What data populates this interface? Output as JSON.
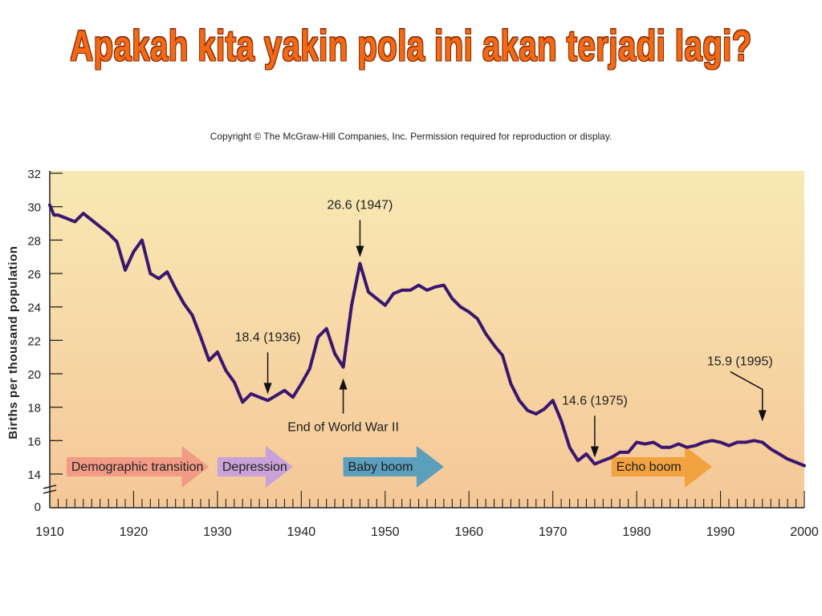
{
  "slide": {
    "title": "Apakah kita yakin pola ini akan terjadi lagi?",
    "copyright": "Copyright © The McGraw-Hill Companies, Inc. Permission required for reproduction or display."
  },
  "chart_data": {
    "type": "line",
    "title": "",
    "xlabel": "",
    "ylabel": "Births per thousand population",
    "xlim": [
      1910,
      2000
    ],
    "ylim": [
      14,
      32
    ],
    "y_axis_break": true,
    "grid": false,
    "line_color": "#3b1670",
    "background_gradient": [
      "#f8e9b4",
      "#f5c797"
    ],
    "x_ticks": [
      "1910",
      "1920",
      "1930",
      "1940",
      "1950",
      "1960",
      "1970",
      "1980",
      "1990",
      "2000"
    ],
    "y_ticks": [
      "32",
      "30",
      "28",
      "26",
      "24",
      "22",
      "20",
      "18",
      "16",
      "14"
    ],
    "y_zero_label": "0",
    "series": [
      {
        "x": [
          1910,
          1910.5,
          1911,
          1912,
          1913,
          1914,
          1915,
          1916,
          1917,
          1918,
          1919,
          1920,
          1921,
          1922,
          1923,
          1924,
          1925,
          1926,
          1927,
          1928,
          1929,
          1930,
          1931,
          1932,
          1933,
          1934,
          1935,
          1936,
          1937,
          1938,
          1939,
          1940,
          1941,
          1942,
          1943,
          1944,
          1945,
          1946,
          1947,
          1948,
          1949,
          1950,
          1951,
          1952,
          1953,
          1954,
          1955,
          1956,
          1957,
          1958,
          1959,
          1960,
          1961,
          1962,
          1963,
          1964,
          1965,
          1966,
          1967,
          1968,
          1969,
          1970,
          1971,
          1972,
          1973,
          1974,
          1975,
          1976,
          1977,
          1978,
          1979,
          1980,
          1981,
          1982,
          1983,
          1984,
          1985,
          1986,
          1987,
          1988,
          1989,
          1990,
          1991,
          1992,
          1993,
          1994,
          1995,
          1996,
          1997,
          1998,
          1999,
          2000
        ],
        "values": [
          30.1,
          29.5,
          29.5,
          29.3,
          29.1,
          29.6,
          29.2,
          28.8,
          28.4,
          27.9,
          26.2,
          27.3,
          28.0,
          26.0,
          25.7,
          26.1,
          25.1,
          24.2,
          23.5,
          22.2,
          20.8,
          21.3,
          20.2,
          19.5,
          18.3,
          18.8,
          18.6,
          18.4,
          18.7,
          19.0,
          18.6,
          19.4,
          20.3,
          22.2,
          22.7,
          21.2,
          20.4,
          24.1,
          26.6,
          24.9,
          24.5,
          24.1,
          24.8,
          25.0,
          25.0,
          25.3,
          25.0,
          25.2,
          25.3,
          24.5,
          24.0,
          23.7,
          23.3,
          22.4,
          21.7,
          21.1,
          19.4,
          18.4,
          17.8,
          17.6,
          17.9,
          18.4,
          17.2,
          15.6,
          14.8,
          15.2,
          14.6,
          14.8,
          15.0,
          15.3,
          15.3,
          15.9,
          15.8,
          15.9,
          15.6,
          15.6,
          15.8,
          15.6,
          15.7,
          15.9,
          16.0,
          15.9,
          15.7,
          15.9,
          15.9,
          16.0,
          15.9,
          15.5,
          15.2,
          14.9,
          14.7,
          14.5
        ]
      }
    ],
    "annotations": [
      {
        "label": "26.6 (1947)",
        "year": 1947,
        "value": 26.6
      },
      {
        "label": "18.4 (1936)",
        "year": 1936,
        "value": 18.4
      },
      {
        "label": "End of World War II",
        "year": 1945,
        "value": 20.4
      },
      {
        "label": "14.6 (1975)",
        "year": 1975,
        "value": 14.6
      },
      {
        "label": "15.9 (1995)",
        "year": 1995,
        "value": 15.9
      }
    ],
    "phases": [
      {
        "label": "Demographic transition",
        "start": 1912,
        "end": 1929,
        "color": "#f29b86"
      },
      {
        "label": "Depression",
        "start": 1930,
        "end": 1939,
        "color": "#c8a2d8"
      },
      {
        "label": "Baby boom",
        "start": 1945,
        "end": 1957,
        "color": "#5b9fbd"
      },
      {
        "label": "Echo boom",
        "start": 1977,
        "end": 1989,
        "color": "#f2a23f"
      }
    ]
  }
}
